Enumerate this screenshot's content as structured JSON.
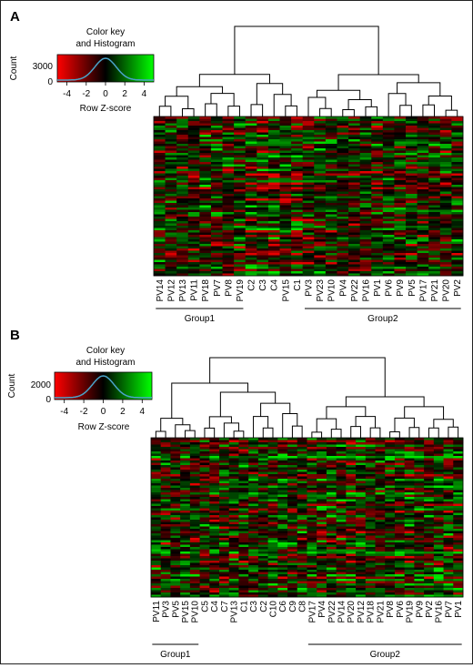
{
  "chart_data": [
    {
      "type": "heatmap",
      "panel_label": "A",
      "color_key": {
        "title_line1": "Color key",
        "title_line2": "and Histogram",
        "ylabel": "Count",
        "ytick": "3000",
        "ytick0": "0",
        "xlabel": "Row Z-score",
        "xticks": [
          "-4",
          "-2",
          "0",
          "2",
          "4"
        ],
        "colors": {
          "low": "#ff0000",
          "mid": "#000000",
          "high": "#00ff00",
          "histogram": "#4aa3c8"
        }
      },
      "columns": [
        "PV14",
        "PV12",
        "PV13",
        "PV11",
        "PV18",
        "PV7",
        "PV8",
        "PV19",
        "C2",
        "C3",
        "C4",
        "PV15",
        "C1",
        "PV3",
        "PV23",
        "PV10",
        "PV4",
        "PV22",
        "PV16",
        "PV1",
        "PV6",
        "PV9",
        "PV5",
        "PV17",
        "PV21",
        "PV20",
        "PV2"
      ],
      "groups": [
        {
          "label": "Group1",
          "start": 0,
          "end": 7
        },
        {
          "label": "Group2",
          "start": 13,
          "end": 26
        }
      ]
    },
    {
      "type": "heatmap",
      "panel_label": "B",
      "color_key": {
        "title_line1": "Color key",
        "title_line2": "and Histogram",
        "ylabel": "Count",
        "ytick": "2000",
        "ytick0": "0",
        "xlabel": "Row Z-score",
        "xticks": [
          "-4",
          "-2",
          "0",
          "2",
          "4"
        ],
        "colors": {
          "low": "#ff0000",
          "mid": "#000000",
          "high": "#00ff00",
          "histogram": "#4aa3c8"
        }
      },
      "columns": [
        "PV11",
        "PV3",
        "PV5",
        "PV15",
        "PV10",
        "C5",
        "C4",
        "C7",
        "PV13",
        "C1",
        "C3",
        "C2",
        "C10",
        "C6",
        "C9",
        "C8",
        "PV17",
        "PV4",
        "PV22",
        "PV14",
        "PV20",
        "PV12",
        "PV18",
        "PV21",
        "PV8",
        "PV6",
        "PV19",
        "PV9",
        "PV2",
        "PV16",
        "PV7",
        "PV1"
      ],
      "groups": [
        {
          "label": "Group1",
          "start": 0,
          "end": 4
        },
        {
          "label": "Group2",
          "start": 16,
          "end": 31
        }
      ]
    }
  ]
}
